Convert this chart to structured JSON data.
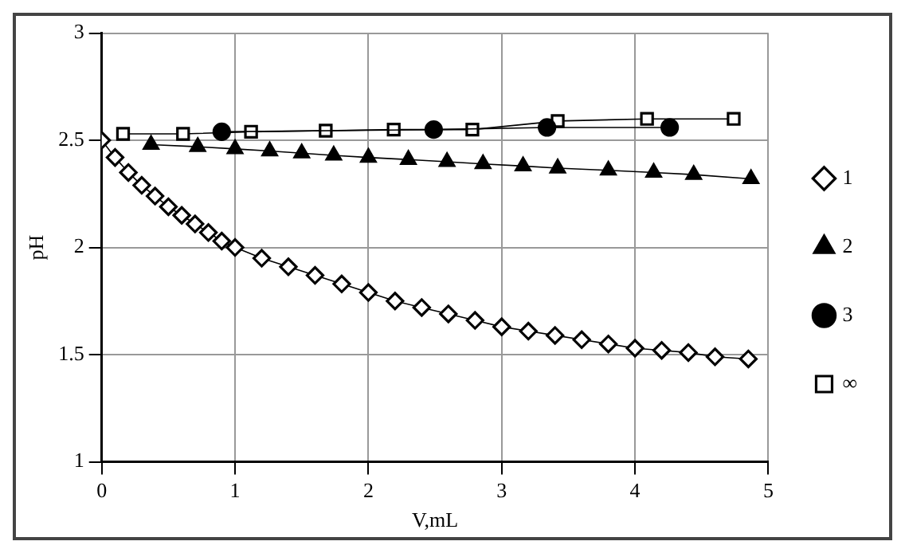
{
  "chart_data": {
    "type": "line",
    "xlabel": "V,mL",
    "ylabel": "pH",
    "xlim": [
      0,
      5
    ],
    "ylim": [
      1,
      3
    ],
    "xticks": [
      0,
      1,
      2,
      3,
      4,
      5
    ],
    "yticks": [
      1,
      1.5,
      2,
      2.5,
      3
    ],
    "grid": true,
    "legend": "right",
    "line_style": "solid",
    "series": [
      {
        "name": "1",
        "color": "#000000",
        "marker": "diamond",
        "x": [
          0,
          0.1,
          0.2,
          0.3,
          0.4,
          0.5,
          0.6,
          0.7,
          0.8,
          0.9,
          1.0,
          1.2,
          1.4,
          1.6,
          1.8,
          2.0,
          2.2,
          2.4,
          2.6,
          2.8,
          3.0,
          3.2,
          3.4,
          3.6,
          3.8,
          4.0,
          4.2,
          4.4,
          4.6,
          4.85
        ],
        "values": [
          2.5,
          2.42,
          2.35,
          2.29,
          2.24,
          2.19,
          2.15,
          2.11,
          2.07,
          2.03,
          2.0,
          1.95,
          1.91,
          1.87,
          1.83,
          1.79,
          1.75,
          1.72,
          1.69,
          1.66,
          1.63,
          1.61,
          1.59,
          1.57,
          1.55,
          1.53,
          1.52,
          1.51,
          1.49,
          1.48
        ]
      },
      {
        "name": "2",
        "color": "#000000",
        "marker": "triangle",
        "x": [
          0.37,
          0.72,
          1.0,
          1.26,
          1.5,
          1.74,
          2.0,
          2.3,
          2.59,
          2.86,
          3.16,
          3.42,
          3.8,
          4.14,
          4.44,
          4.87
        ],
        "values": [
          2.48,
          2.47,
          2.46,
          2.45,
          2.44,
          2.43,
          2.42,
          2.41,
          2.4,
          2.39,
          2.38,
          2.37,
          2.36,
          2.35,
          2.34,
          2.32
        ]
      },
      {
        "name": "3",
        "color": "#000000",
        "marker": "circle",
        "x": [
          0.9,
          2.49,
          3.34,
          4.26
        ],
        "values": [
          2.54,
          2.55,
          2.56,
          2.56
        ]
      },
      {
        "name": "∞",
        "color": "#000000",
        "marker": "square",
        "x": [
          0.16,
          0.61,
          1.12,
          1.68,
          2.19,
          2.78,
          3.42,
          4.09,
          4.74
        ],
        "values": [
          2.53,
          2.53,
          2.54,
          2.545,
          2.55,
          2.55,
          2.59,
          2.6,
          2.6
        ]
      }
    ]
  }
}
